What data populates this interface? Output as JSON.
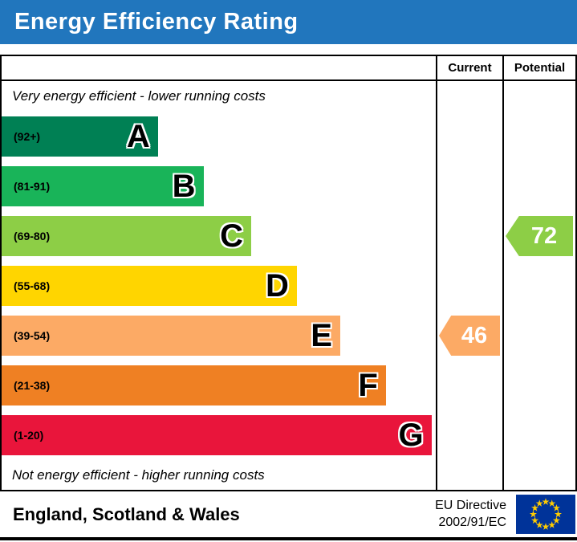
{
  "header": {
    "title": "Energy Efficiency Rating",
    "bg_color": "#2176bd"
  },
  "table": {
    "col_current": "Current",
    "col_potential": "Potential",
    "top_note": "Very energy efficient - lower running costs",
    "bottom_note": "Not energy efficient - higher running costs"
  },
  "bands": [
    {
      "letter": "A",
      "range": "(92+)",
      "color": "#008054",
      "width_pct": 36
    },
    {
      "letter": "B",
      "range": "(81-91)",
      "color": "#19b459",
      "width_pct": 46.5
    },
    {
      "letter": "C",
      "range": "(69-80)",
      "color": "#8dce46",
      "width_pct": 57.5
    },
    {
      "letter": "D",
      "range": "(55-68)",
      "color": "#ffd500",
      "width_pct": 68
    },
    {
      "letter": "E",
      "range": "(39-54)",
      "color": "#fcaa65",
      "width_pct": 78
    },
    {
      "letter": "F",
      "range": "(21-38)",
      "color": "#ef8023",
      "width_pct": 88.5
    },
    {
      "letter": "G",
      "range": "(1-20)",
      "color": "#e9153b",
      "width_pct": 99
    }
  ],
  "ratings": {
    "current": {
      "value": "46",
      "band": "E",
      "band_index": 4,
      "color": "#fcaa65"
    },
    "potential": {
      "value": "72",
      "band": "C",
      "band_index": 2,
      "color": "#8dce46"
    }
  },
  "footer": {
    "region": "England, Scotland & Wales",
    "directive": [
      "EU Directive",
      "2002/91/EC"
    ],
    "flag_colors": {
      "field": "#003399",
      "stars": "#ffcc00"
    }
  },
  "chart_data": {
    "type": "bar",
    "title": "Energy Efficiency Rating",
    "categories": [
      "A (92+)",
      "B (81-91)",
      "C (69-80)",
      "D (55-68)",
      "E (39-54)",
      "F (21-38)",
      "G (1-20)"
    ],
    "values": [
      36,
      46.5,
      57.5,
      68,
      78,
      88.5,
      99
    ],
    "colors": [
      "#008054",
      "#19b459",
      "#8dce46",
      "#ffd500",
      "#fcaa65",
      "#ef8023",
      "#e9153b"
    ],
    "markers": [
      {
        "label": "Current",
        "value": 46,
        "band": "E"
      },
      {
        "label": "Potential",
        "value": 72,
        "band": "C"
      }
    ],
    "annotations": [
      "Very energy efficient - lower running costs",
      "Not energy efficient - higher running costs"
    ],
    "legend_position": "none",
    "grid": false
  }
}
